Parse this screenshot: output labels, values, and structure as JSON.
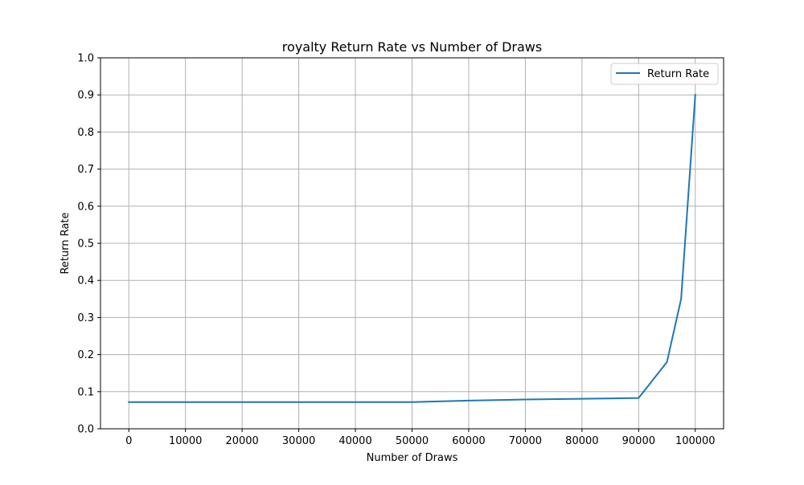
{
  "chart_data": {
    "type": "line",
    "title": "royalty Return Rate vs Number of Draws",
    "xlabel": "Number of Draws",
    "ylabel": "Return Rate",
    "xlim": [
      -5000,
      105000
    ],
    "ylim": [
      0,
      1.0
    ],
    "x_ticks": [
      0,
      10000,
      20000,
      30000,
      40000,
      50000,
      60000,
      70000,
      80000,
      90000,
      100000
    ],
    "x_tick_labels": [
      "0",
      "10000",
      "20000",
      "30000",
      "40000",
      "50000",
      "60000",
      "70000",
      "80000",
      "90000",
      "100000"
    ],
    "y_ticks": [
      0.0,
      0.1,
      0.2,
      0.3,
      0.4,
      0.5,
      0.6,
      0.7,
      0.8,
      0.9,
      1.0
    ],
    "y_tick_labels": [
      "0.0",
      "0.1",
      "0.2",
      "0.3",
      "0.4",
      "0.5",
      "0.6",
      "0.7",
      "0.8",
      "0.9",
      "1.0"
    ],
    "grid": true,
    "legend_position": "top-right",
    "series": [
      {
        "name": "Return Rate",
        "color": "#1f77b4",
        "x": [
          0,
          50000,
          60000,
          70000,
          80000,
          90000,
          95000,
          97500,
          100000
        ],
        "y": [
          0.072,
          0.072,
          0.076,
          0.079,
          0.081,
          0.083,
          0.18,
          0.35,
          0.9
        ]
      }
    ]
  }
}
